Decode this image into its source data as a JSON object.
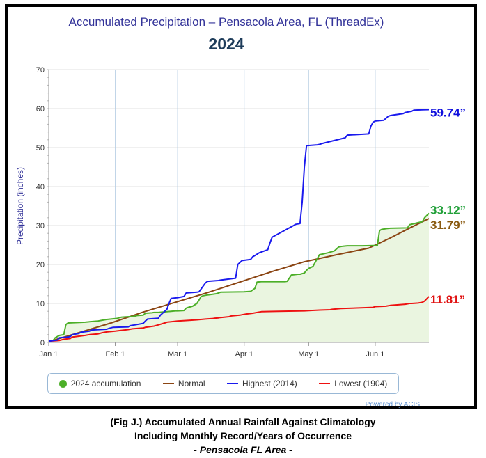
{
  "title": "Accumulated Precipitation – Pensacola Area, FL (ThreadEx)",
  "subtitle": "2024",
  "credits": "Powered by ACIS",
  "caption": {
    "line1": "(Fig J.) Accumulated Annual Rainfall Against  Climatology",
    "line2": "Including Monthly Record/Years of Occurrence",
    "line3": "- Pensacola FL Area -"
  },
  "end_labels": {
    "highest": "59.74”",
    "accum": "33.12”",
    "normal": "31.79”",
    "lowest": "11.81”"
  },
  "chart_data": {
    "type": "line",
    "ylabel": "Precipitation (inches)",
    "ylim": [
      0,
      70
    ],
    "yticks": [
      0,
      10,
      20,
      30,
      40,
      50,
      60,
      70
    ],
    "xlim": [
      1,
      178
    ],
    "xticks": [
      {
        "day": 1,
        "label": "Jan 1"
      },
      {
        "day": 32,
        "label": "Feb 1"
      },
      {
        "day": 61,
        "label": "Mar 1"
      },
      {
        "day": 92,
        "label": "Apr 1"
      },
      {
        "day": 122,
        "label": "May 1"
      },
      {
        "day": 153,
        "label": "Jun 1"
      }
    ],
    "grid": true,
    "legend_position": "bottom",
    "series": [
      {
        "name": "2024 accumulation",
        "color": "#4caf28",
        "fill": "#eaf5e0",
        "marker": "dot",
        "x": [
          1,
          3,
          4,
          6,
          8,
          9,
          10,
          18,
          20,
          24,
          27,
          28,
          32,
          33,
          34,
          35,
          41,
          42,
          45,
          46,
          49,
          50,
          52,
          56,
          58,
          60,
          61,
          64,
          65,
          66,
          68,
          70,
          72,
          73,
          75,
          79,
          80,
          81,
          92,
          95,
          96,
          97,
          98,
          100,
          103,
          111,
          112,
          114,
          117,
          118,
          120,
          121,
          122,
          124,
          127,
          131,
          134,
          135,
          136,
          138,
          140,
          142,
          144,
          145,
          147,
          154,
          155,
          156,
          158,
          160,
          168,
          169,
          175,
          176,
          178
        ],
        "y": [
          0.3,
          0.5,
          1.2,
          1.8,
          2.0,
          4.6,
          5.0,
          5.2,
          5.3,
          5.5,
          5.8,
          5.9,
          6.1,
          6.2,
          6.4,
          6.5,
          6.7,
          6.9,
          7.0,
          7.5,
          7.6,
          7.7,
          7.7,
          7.9,
          8.0,
          8.1,
          8.1,
          8.2,
          8.8,
          9.0,
          9.3,
          10.0,
          11.8,
          12.0,
          12.2,
          12.5,
          12.7,
          12.9,
          13.0,
          13.1,
          13.5,
          13.9,
          15.5,
          15.6,
          15.6,
          15.6,
          15.7,
          17.3,
          17.5,
          17.5,
          17.8,
          18.5,
          19.0,
          19.5,
          22.5,
          23.0,
          23.5,
          24.0,
          24.5,
          24.7,
          24.8,
          24.8,
          24.8,
          24.8,
          24.8,
          24.9,
          28.7,
          29.0,
          29.2,
          29.3,
          29.4,
          30.2,
          31.0,
          32.0,
          33.12
        ]
      },
      {
        "name": "Normal",
        "color": "#8b4513",
        "x": [
          1,
          15,
          30,
          45,
          60,
          75,
          90,
          105,
          120,
          135,
          150,
          160,
          170,
          178
        ],
        "y": [
          0.2,
          2.5,
          5.0,
          7.8,
          10.3,
          12.8,
          15.5,
          18.2,
          20.7,
          22.5,
          24.2,
          26.8,
          29.6,
          31.79
        ]
      },
      {
        "name": "Highest (2014)",
        "color": "#1a1aee",
        "x": [
          1,
          5,
          6,
          10,
          11,
          12,
          15,
          16,
          20,
          21,
          28,
          29,
          31,
          38,
          39,
          41,
          45,
          46,
          47,
          52,
          53,
          55,
          56,
          57,
          58,
          61,
          64,
          65,
          70,
          71,
          74,
          75,
          80,
          81,
          88,
          89,
          91,
          95,
          96,
          97,
          99,
          100,
          103,
          104,
          105,
          115,
          116,
          118,
          119,
          120,
          121,
          126,
          127,
          128,
          139,
          140,
          150,
          151,
          152,
          153,
          157,
          158,
          159,
          160,
          161,
          166,
          167,
          170,
          171,
          175,
          178
        ],
        "y": [
          0.3,
          0.6,
          1.2,
          1.4,
          1.5,
          2.0,
          2.3,
          2.6,
          2.9,
          3.2,
          3.4,
          3.6,
          3.9,
          4.0,
          4.3,
          4.5,
          4.9,
          5.5,
          6.0,
          6.2,
          7.0,
          8.0,
          8.5,
          10.0,
          11.3,
          11.5,
          11.8,
          12.7,
          12.9,
          13.0,
          15.3,
          15.7,
          15.9,
          16.0,
          16.5,
          20.0,
          21.0,
          21.3,
          22.0,
          22.3,
          23.0,
          23.2,
          23.8,
          25.5,
          27.0,
          30.0,
          30.3,
          30.5,
          36.0,
          45.0,
          50.5,
          50.7,
          50.8,
          51.0,
          52.5,
          53.2,
          53.5,
          55.5,
          56.5,
          56.8,
          57.0,
          57.5,
          58.0,
          58.2,
          58.3,
          58.7,
          59.0,
          59.3,
          59.6,
          59.7,
          59.74
        ]
      },
      {
        "name": "Lowest (1904)",
        "color": "#ee1111",
        "x": [
          1,
          6,
          8,
          11,
          12,
          18,
          20,
          24,
          26,
          28,
          32,
          38,
          40,
          45,
          46,
          50,
          52,
          55,
          56,
          58,
          61,
          67,
          70,
          74,
          77,
          78,
          80,
          81,
          85,
          86,
          90,
          91,
          93,
          96,
          99,
          100,
          108,
          120,
          123,
          127,
          132,
          133,
          137,
          152,
          153,
          158,
          160,
          167,
          169,
          170,
          173,
          175,
          176,
          178
        ],
        "y": [
          0.3,
          0.5,
          0.8,
          1.0,
          1.4,
          1.8,
          2.0,
          2.2,
          2.5,
          2.7,
          2.9,
          3.3,
          3.5,
          3.7,
          3.9,
          4.2,
          4.5,
          5.0,
          5.2,
          5.3,
          5.5,
          5.7,
          5.8,
          6.0,
          6.1,
          6.2,
          6.3,
          6.4,
          6.6,
          6.8,
          7.0,
          7.1,
          7.3,
          7.5,
          7.8,
          7.9,
          8.0,
          8.1,
          8.2,
          8.3,
          8.4,
          8.5,
          8.7,
          9.0,
          9.2,
          9.3,
          9.5,
          9.8,
          10.0,
          10.0,
          10.1,
          10.3,
          10.6,
          11.81
        ]
      }
    ]
  }
}
